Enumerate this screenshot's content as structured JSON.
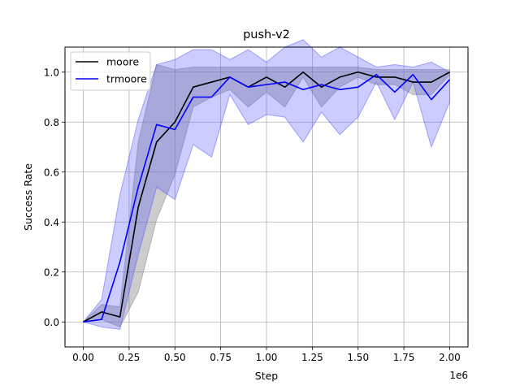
{
  "chart_data": {
    "type": "line",
    "title": "push-v2",
    "xlabel": "Step",
    "ylabel": "Success Rate",
    "x_offset_label": "1e6",
    "xlim": [
      -0.1,
      2.1
    ],
    "ylim": [
      -0.1,
      1.1
    ],
    "x_ticks": [
      "0.00",
      "0.25",
      "0.50",
      "0.75",
      "1.00",
      "1.25",
      "1.50",
      "1.75",
      "2.00"
    ],
    "y_ticks": [
      "0.0",
      "0.2",
      "0.4",
      "0.6",
      "0.8",
      "1.0"
    ],
    "grid": true,
    "legend_position": "top-left",
    "x": [
      0.0,
      0.1,
      0.2,
      0.3,
      0.4,
      0.5,
      0.6,
      0.7,
      0.8,
      0.9,
      1.0,
      1.1,
      1.2,
      1.3,
      1.4,
      1.5,
      1.6,
      1.7,
      1.8,
      1.9,
      2.0
    ],
    "series": [
      {
        "name": "moore",
        "color": "#000000",
        "band_color": "#808080",
        "values": [
          0.0,
          0.04,
          0.02,
          0.46,
          0.72,
          0.8,
          0.94,
          0.96,
          0.98,
          0.94,
          0.98,
          0.94,
          1.0,
          0.94,
          0.98,
          1.0,
          0.98,
          0.98,
          0.96,
          0.96,
          1.0
        ],
        "upper": [
          0.0,
          0.07,
          0.06,
          0.72,
          1.03,
          1.01,
          1.02,
          1.02,
          1.02,
          1.02,
          1.02,
          1.02,
          1.02,
          1.02,
          1.02,
          1.02,
          1.01,
          1.01,
          1.01,
          1.01,
          1.01
        ],
        "lower": [
          0.0,
          0.01,
          -0.02,
          0.12,
          0.41,
          0.59,
          0.86,
          0.9,
          0.93,
          0.86,
          0.92,
          0.86,
          0.98,
          0.86,
          0.94,
          0.98,
          0.95,
          0.95,
          0.91,
          0.91,
          0.99
        ]
      },
      {
        "name": "trmoore",
        "color": "#0000ff",
        "band_color": "#5555ff",
        "values": [
          0.0,
          0.01,
          0.24,
          0.54,
          0.79,
          0.77,
          0.9,
          0.9,
          0.98,
          0.94,
          0.95,
          0.96,
          0.93,
          0.95,
          0.93,
          0.94,
          0.99,
          0.92,
          0.99,
          0.89,
          0.97
        ],
        "upper": [
          0.0,
          0.09,
          0.51,
          0.81,
          1.03,
          1.05,
          1.09,
          1.09,
          1.05,
          1.09,
          1.04,
          1.1,
          1.13,
          1.06,
          1.1,
          1.06,
          1.02,
          1.03,
          1.02,
          1.04,
          1.0
        ],
        "lower": [
          0.0,
          -0.02,
          -0.03,
          0.27,
          0.54,
          0.49,
          0.71,
          0.66,
          0.91,
          0.79,
          0.83,
          0.82,
          0.72,
          0.84,
          0.75,
          0.82,
          0.96,
          0.81,
          0.96,
          0.7,
          0.88
        ]
      }
    ]
  }
}
